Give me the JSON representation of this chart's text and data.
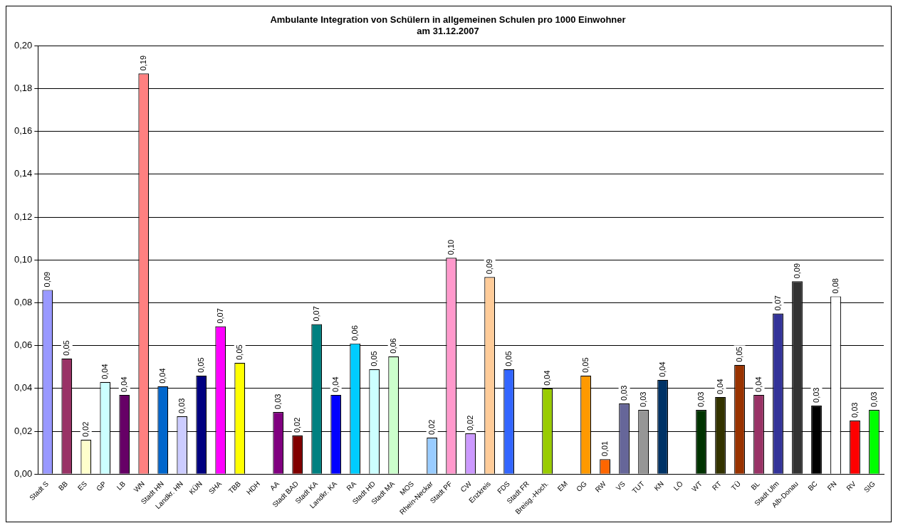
{
  "chart_data": {
    "type": "bar",
    "title": "Ambulante Integration von Schülern in allgemeinen Schulen pro 1000 Einwohner\nam 31.12.2007",
    "categories": [
      "Stadt S",
      "BB",
      "ES",
      "GP",
      "LB",
      "WN",
      "Stadt HN",
      "Landkr. HN",
      "KÜN",
      "SHA",
      "TBB",
      "HDH",
      "AA",
      "Stadt BAD",
      "Stadt KA",
      "Landkr. KA",
      "RA",
      "Stadt HD",
      "Stadt MA",
      "MOS",
      "Rhein-Neckar",
      "Stadt PF",
      "CW",
      "Enzkreis",
      "FDS",
      "Stadt FR",
      "Breisg.-Hoch.",
      "EM",
      "OG",
      "RW",
      "VS",
      "TUT",
      "KN",
      "LÖ",
      "WT",
      "RT",
      "TÜ",
      "BL",
      "Stadt Ulm",
      "Alb-Donau",
      "BC",
      "FN",
      "RV",
      "SIG"
    ],
    "values": [
      0.086,
      0.054,
      0.016,
      0.043,
      0.037,
      0.187,
      0.041,
      0.027,
      0.046,
      0.069,
      0.052,
      null,
      0.029,
      0.018,
      0.07,
      0.037,
      0.061,
      0.049,
      0.055,
      null,
      0.017,
      0.101,
      0.019,
      0.092,
      0.049,
      null,
      0.04,
      null,
      0.046,
      0.007,
      0.033,
      0.03,
      0.044,
      null,
      0.03,
      0.036,
      0.051,
      0.037,
      0.075,
      0.09,
      0.032,
      0.083,
      0.025,
      0.03
    ],
    "value_labels": [
      "0,09",
      "0,05",
      "0,02",
      "0,04",
      "0,04",
      "0,19",
      "0,04",
      "0,03",
      "0,05",
      "0,07",
      "0,05",
      null,
      "0,03",
      "0,02",
      "0,07",
      "0,04",
      "0,06",
      "0,05",
      "0,06",
      null,
      "0,02",
      "0,10",
      "0,02",
      "0,09",
      "0,05",
      null,
      "0,04",
      null,
      "0,05",
      "0,01",
      "0,03",
      "0,03",
      "0,04",
      null,
      "0,03",
      "0,04",
      "0,05",
      "0,04",
      "0,07",
      "0,09",
      "0,03",
      "0,08",
      "0,03",
      "0,03"
    ],
    "colors": [
      "#9999ff",
      "#993366",
      "#ffffcc",
      "#ccffff",
      "#660066",
      "#ff8080",
      "#0066cc",
      "#ccccff",
      "#000080",
      "#ff00ff",
      "#ffff00",
      "#ffffff",
      "#800080",
      "#800000",
      "#008080",
      "#0000ff",
      "#00ccff",
      "#ccffff",
      "#ccffcc",
      "#ffffff",
      "#99ccff",
      "#ff99cc",
      "#cc99ff",
      "#ffcc99",
      "#3366ff",
      "#ffffff",
      "#99cc00",
      "#ffffff",
      "#ff9900",
      "#ff6600",
      "#666699",
      "#969696",
      "#003366",
      "#ffffff",
      "#003300",
      "#333300",
      "#993300",
      "#993366",
      "#333399",
      "#333333",
      "#000000",
      "#ffffff",
      "#ff0000",
      "#00ff00"
    ],
    "ylim": [
      0,
      0.2
    ],
    "yticks": [
      {
        "value": 0,
        "label": "0,00"
      },
      {
        "value": 0.02,
        "label": "0,02"
      },
      {
        "value": 0.04,
        "label": "0,04"
      },
      {
        "value": 0.06,
        "label": "0,06"
      },
      {
        "value": 0.08,
        "label": "0,08"
      },
      {
        "value": 0.1,
        "label": "0,10"
      },
      {
        "value": 0.12,
        "label": "0,12"
      },
      {
        "value": 0.14,
        "label": "0,14"
      },
      {
        "value": 0.16,
        "label": "0,16"
      },
      {
        "value": 0.18,
        "label": "0,18"
      },
      {
        "value": 0.2,
        "label": "0,20"
      }
    ],
    "grid": "y",
    "legend": false
  }
}
